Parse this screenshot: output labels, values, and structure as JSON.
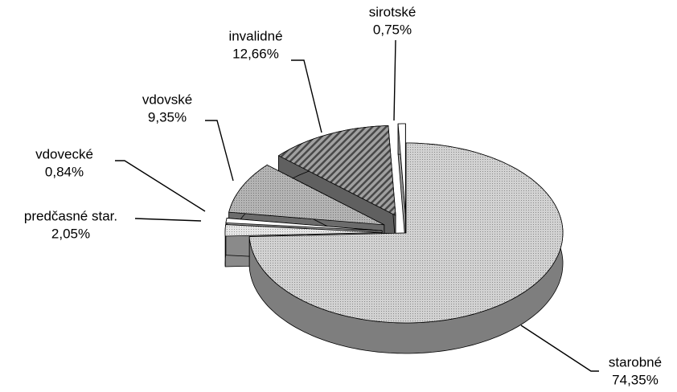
{
  "chart_data": {
    "type": "pie",
    "categories": [
      "starobné",
      "predčasné star.",
      "vdovecké",
      "vdovské",
      "invalidné",
      "sirotské"
    ],
    "values": [
      74.35,
      2.05,
      0.84,
      9.35,
      12.66,
      0.75
    ],
    "value_labels": [
      "74,35%",
      "2,05%",
      "0,84%",
      "9,35%",
      "12,66%",
      "0,75%"
    ],
    "colors": [
      "#d2d2d2",
      "#e6e6e6",
      "#ffffff",
      "#b4b4b4",
      "#a0a0a0",
      "#ffffff"
    ]
  }
}
